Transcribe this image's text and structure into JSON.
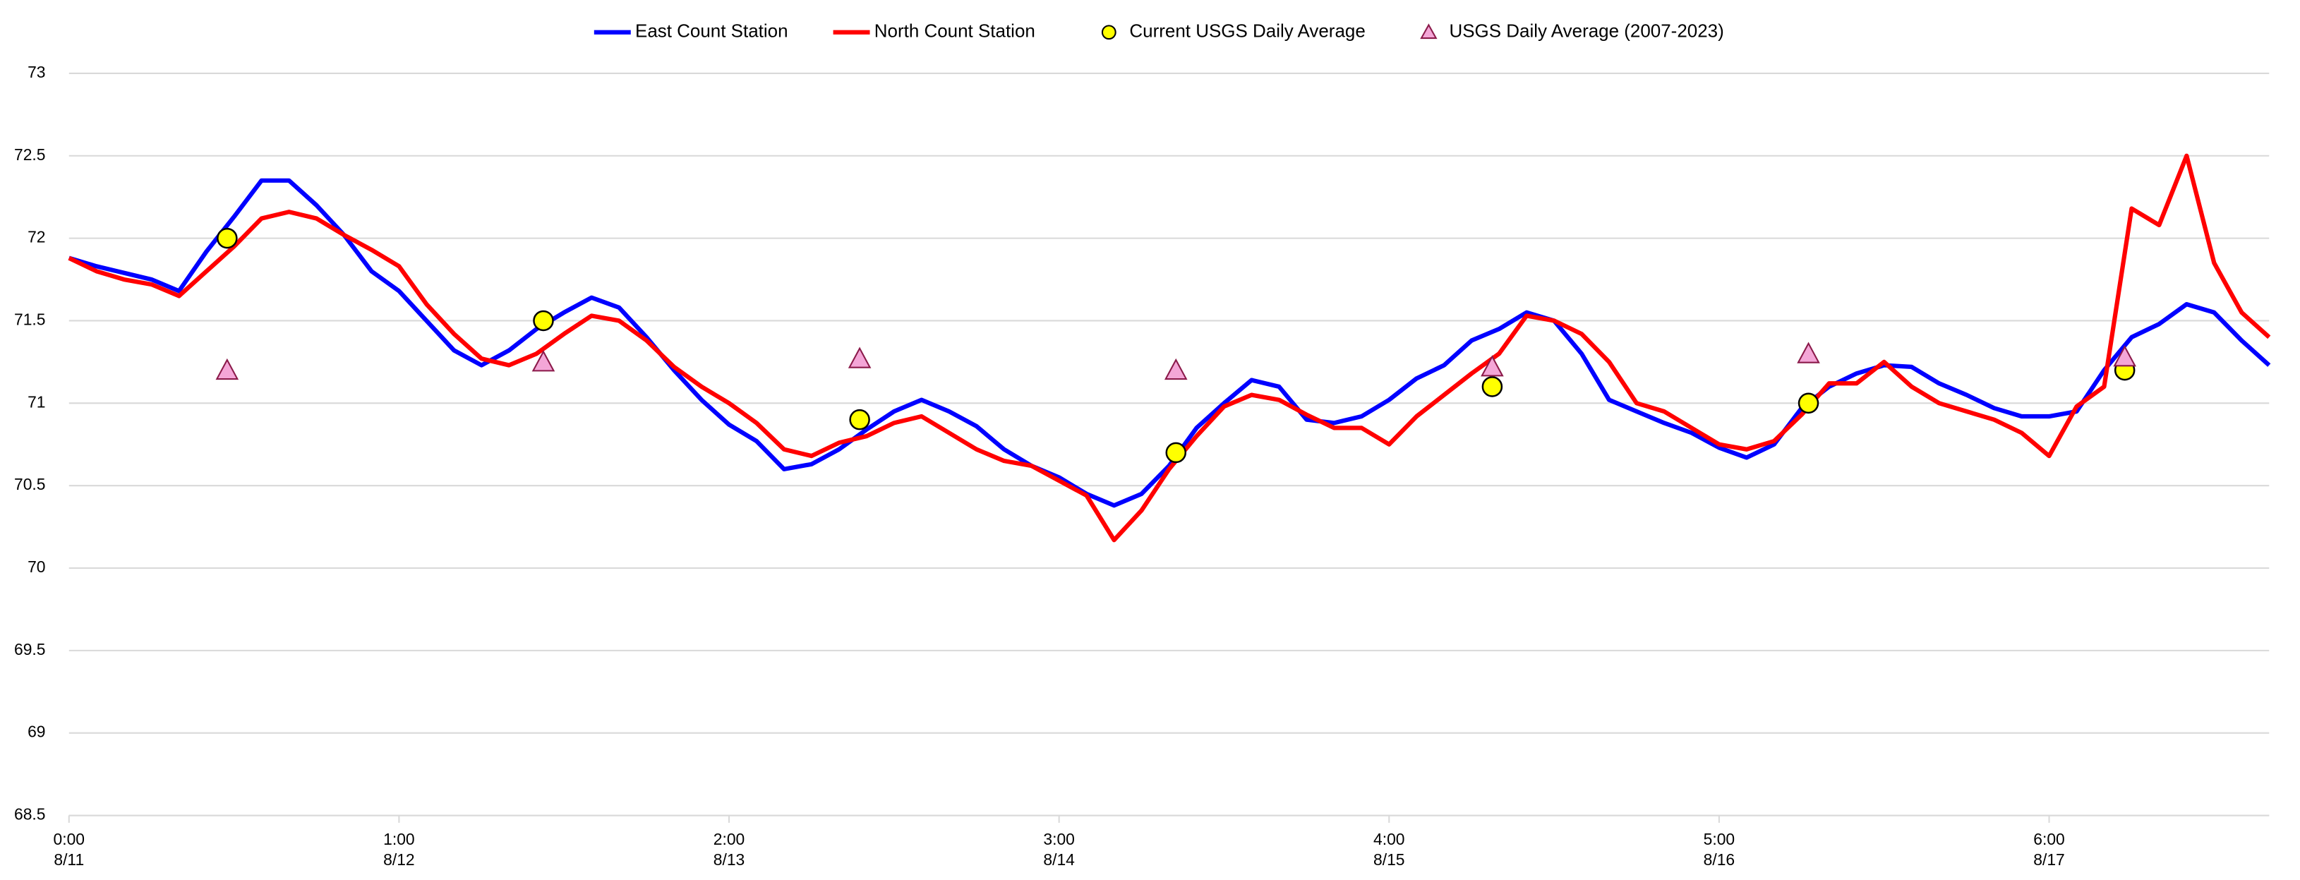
{
  "chart_data": {
    "type": "line",
    "x": [
      0,
      2,
      4,
      6,
      8,
      10,
      12,
      14,
      16,
      18,
      20,
      22,
      24,
      26,
      28,
      30,
      32,
      34,
      36,
      38,
      40,
      42,
      44,
      46,
      48,
      50,
      52,
      54,
      56,
      58,
      60,
      62,
      64,
      66,
      68,
      70,
      72,
      74,
      76,
      78,
      80,
      82,
      84,
      86,
      88,
      90,
      92,
      94,
      96,
      98,
      100,
      102,
      104,
      106,
      108,
      110,
      112,
      114,
      116,
      118,
      120,
      122,
      124,
      126,
      128,
      130,
      132,
      134,
      136,
      138,
      140,
      142,
      144,
      146,
      148,
      150,
      152,
      154,
      156,
      158,
      160
    ],
    "xlim": [
      0,
      160
    ],
    "xticks": [
      {
        "value": 0,
        "label": "0:00",
        "sublabel": "8/11"
      },
      {
        "value": 24,
        "label": "1:00",
        "sublabel": "8/12"
      },
      {
        "value": 48,
        "label": "2:00",
        "sublabel": "8/13"
      },
      {
        "value": 72,
        "label": "3:00",
        "sublabel": "8/14"
      },
      {
        "value": 96,
        "label": "4:00",
        "sublabel": "8/15"
      },
      {
        "value": 120,
        "label": "5:00",
        "sublabel": "8/16"
      },
      {
        "value": 144,
        "label": "6:00",
        "sublabel": "8/17"
      }
    ],
    "ylim": [
      68.5,
      73
    ],
    "yticks": [
      68.5,
      69,
      69.5,
      70,
      70.5,
      71,
      71.5,
      72,
      72.5,
      73
    ],
    "grid": true,
    "legend": "top",
    "series": [
      {
        "name": "East Count Station",
        "mark": "line",
        "color": "#0000ff",
        "values": [
          71.88,
          71.83,
          71.79,
          71.75,
          71.68,
          71.92,
          72.13,
          72.35,
          72.35,
          72.2,
          72.02,
          71.8,
          71.68,
          71.5,
          71.32,
          71.23,
          71.32,
          71.45,
          71.55,
          71.64,
          71.58,
          71.4,
          71.2,
          71.02,
          70.87,
          70.77,
          70.6,
          70.63,
          70.72,
          70.84,
          70.95,
          71.02,
          70.95,
          70.86,
          70.72,
          70.62,
          70.55,
          70.45,
          70.38,
          70.45,
          70.62,
          70.85,
          71.0,
          71.14,
          71.1,
          70.9,
          70.88,
          70.92,
          71.02,
          71.15,
          71.23,
          71.38,
          71.45,
          71.55,
          71.5,
          71.3,
          71.02,
          70.95,
          70.88,
          70.82,
          70.73,
          70.67,
          70.75,
          70.97,
          71.1,
          71.18,
          71.23,
          71.22,
          71.12,
          71.05,
          70.97,
          70.92,
          70.92,
          70.95,
          71.2,
          71.4,
          71.48,
          71.6,
          71.55,
          71.38,
          71.23
        ]
      },
      {
        "name": "North Count Station",
        "mark": "line",
        "color": "#ff0000",
        "values": [
          71.88,
          71.8,
          71.75,
          71.72,
          71.65,
          71.8,
          71.95,
          72.12,
          72.16,
          72.12,
          72.02,
          71.93,
          71.83,
          71.6,
          71.42,
          71.27,
          71.23,
          71.3,
          71.42,
          71.53,
          71.5,
          71.38,
          71.22,
          71.1,
          71.0,
          70.88,
          70.72,
          70.68,
          70.76,
          70.8,
          70.88,
          70.92,
          70.82,
          70.72,
          70.65,
          70.62,
          70.53,
          70.44,
          70.17,
          70.35,
          70.6,
          70.8,
          70.98,
          71.05,
          71.02,
          70.93,
          70.85,
          70.85,
          70.75,
          70.92,
          71.05,
          71.18,
          71.3,
          71.53,
          71.5,
          71.42,
          71.25,
          71.0,
          70.95,
          70.85,
          70.75,
          70.72,
          70.77,
          70.93,
          71.12,
          71.12,
          71.25,
          71.1,
          71.0,
          70.95,
          70.9,
          70.82,
          70.68,
          70.98,
          71.1,
          72.18,
          72.08,
          72.5,
          71.85,
          71.55,
          71.4
        ]
      },
      {
        "name": "Current USGS Daily Average",
        "mark": "circle",
        "color": "#ffff00",
        "x": [
          11.5,
          34.5,
          57.5,
          80.5,
          103.5,
          126.5,
          149.5
        ],
        "values": [
          72.0,
          71.5,
          70.9,
          70.7,
          71.1,
          71.0,
          71.2
        ]
      },
      {
        "name": "USGS Daily Average (2007-2023)",
        "mark": "triangle",
        "color": "#f4a6d7",
        "x": [
          11.5,
          34.5,
          57.5,
          80.5,
          103.5,
          126.5,
          149.5
        ],
        "values": [
          71.2,
          71.25,
          71.27,
          71.2,
          71.22,
          71.3,
          71.28
        ]
      }
    ]
  }
}
